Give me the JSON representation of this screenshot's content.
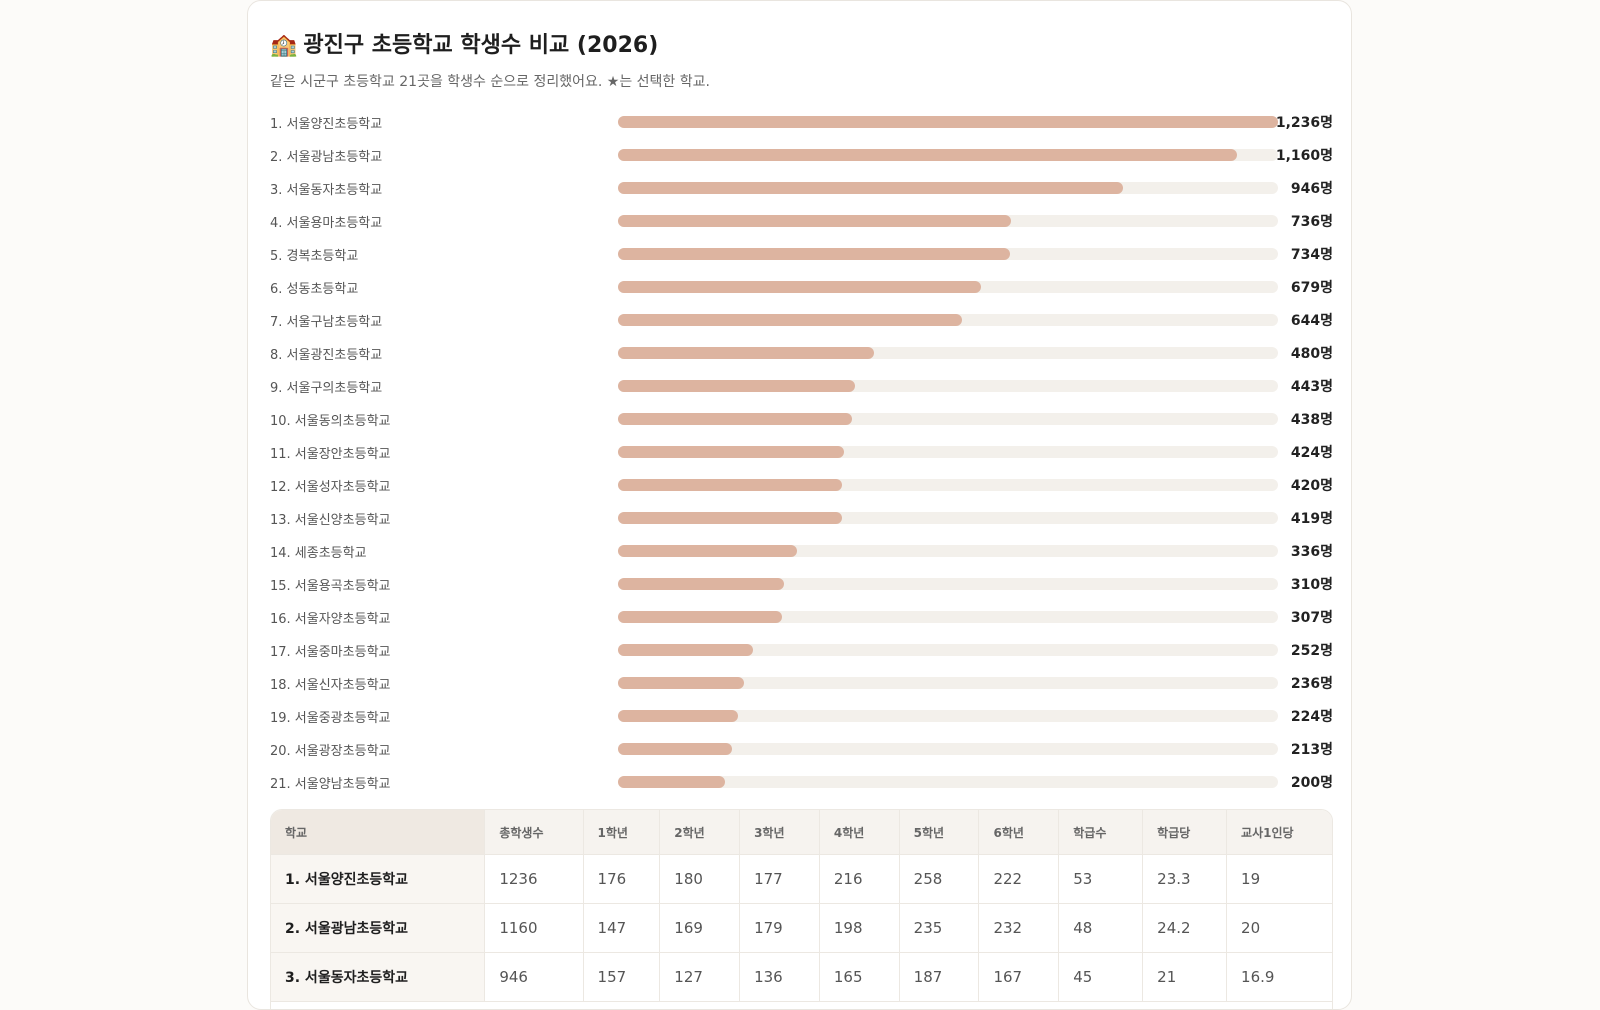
{
  "page": {
    "title_icon": "🏫",
    "title": "광진구 초등학교 학생수 비교 (2026)",
    "subtitle": "같은 시군구 초등학교 21곳을 학생수 순으로 정리했어요. ★는 선택한 학교."
  },
  "chart_data": {
    "type": "bar",
    "orientation": "horizontal",
    "unit_suffix": "명",
    "xlim": [
      0,
      1236
    ],
    "colors": {
      "bar": "#ddb4a0",
      "track": "#f3f0eb"
    },
    "categories": [
      "1. 서울양진초등학교",
      "2. 서울광남초등학교",
      "3. 서울동자초등학교",
      "4. 서울용마초등학교",
      "5. 경복초등학교",
      "6. 성동초등학교",
      "7. 서울구남초등학교",
      "8. 서울광진초등학교",
      "9. 서울구의초등학교",
      "10. 서울동의초등학교",
      "11. 서울장안초등학교",
      "12. 서울성자초등학교",
      "13. 서울신양초등학교",
      "14. 세종초등학교",
      "15. 서울용곡초등학교",
      "16. 서울자양초등학교",
      "17. 서울중마초등학교",
      "18. 서울신자초등학교",
      "19. 서울중광초등학교",
      "20. 서울광장초등학교",
      "21. 서울양남초등학교"
    ],
    "values": [
      1236,
      1160,
      946,
      736,
      734,
      679,
      644,
      480,
      443,
      438,
      424,
      420,
      419,
      336,
      310,
      307,
      252,
      236,
      224,
      213,
      200
    ],
    "value_labels": [
      "1,236명",
      "1,160명",
      "946명",
      "736명",
      "734명",
      "679명",
      "644명",
      "480명",
      "443명",
      "438명",
      "424명",
      "420명",
      "419명",
      "336명",
      "310명",
      "307명",
      "252명",
      "236명",
      "224명",
      "213명",
      "200명"
    ]
  },
  "table": {
    "headers": [
      "학교",
      "총학생수",
      "1학년",
      "2학년",
      "3학년",
      "4학년",
      "5학년",
      "6학년",
      "학급수",
      "학급당",
      "교사1인당"
    ],
    "rows": [
      [
        "1. 서울양진초등학교",
        "1236",
        "176",
        "180",
        "177",
        "216",
        "258",
        "222",
        "53",
        "23.3",
        "19"
      ],
      [
        "2. 서울광남초등학교",
        "1160",
        "147",
        "169",
        "179",
        "198",
        "235",
        "232",
        "48",
        "24.2",
        "20"
      ],
      [
        "3. 서울동자초등학교",
        "946",
        "157",
        "127",
        "136",
        "165",
        "187",
        "167",
        "45",
        "21",
        "16.9"
      ]
    ]
  }
}
